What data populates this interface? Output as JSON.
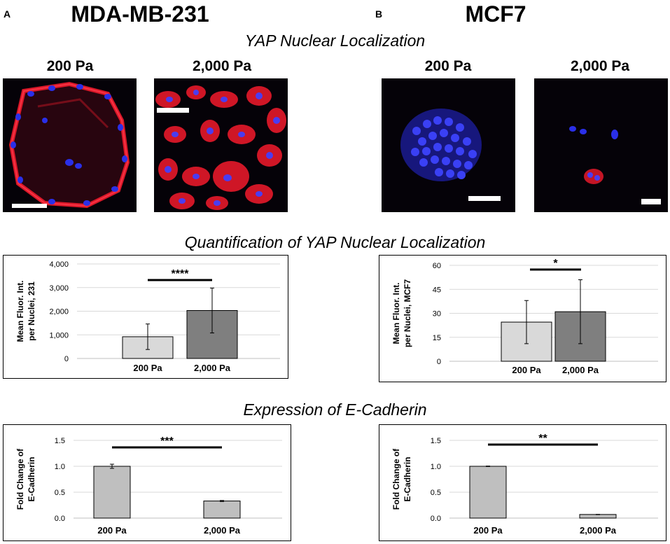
{
  "panels": {
    "a": {
      "letter": "A",
      "title": "MDA-MB-231"
    },
    "b": {
      "letter": "B",
      "title": "MCF7"
    }
  },
  "sections": {
    "yap": "YAP Nuclear Localization",
    "quant": "Quantification of YAP Nuclear Localization",
    "ecad": "Expression of E-Cadherin"
  },
  "image_labels": {
    "a_200": "200 Pa",
    "a_2000": "2,000 Pa",
    "b_200": "200 Pa",
    "b_2000": "2,000 Pa"
  },
  "colors": {
    "actin_red": "#e5192a",
    "nuclei_blue": "#2a2fe8",
    "bar_light": "#d9d9d9",
    "bar_dark": "#7f7f7f",
    "bar_grey": "#bfbfbf"
  },
  "chart_data": [
    {
      "type": "bar",
      "categories": [
        "200 Pa",
        "2,000 Pa"
      ],
      "values": [
        920,
        2030
      ],
      "errors": [
        540,
        950
      ],
      "ylabel": "Mean Fluor. Int. per Nuclei, 231",
      "ylabel_lines": [
        "Mean Fluor. Int.",
        "per Nuclei, 231"
      ],
      "ylim": [
        0,
        4000
      ],
      "yticks": [
        0,
        1000,
        2000,
        3000,
        4000
      ],
      "ytick_labels": [
        "0",
        "1,000",
        "2,000",
        "3,000",
        "4,000"
      ],
      "significance": "****",
      "grid": true
    },
    {
      "type": "bar",
      "categories": [
        "200 Pa",
        "2,000 Pa"
      ],
      "values": [
        24.5,
        31
      ],
      "errors": [
        13.5,
        20
      ],
      "ylabel": "Mean Fluor. Int. per Nuclei, MCF7",
      "ylabel_lines": [
        "Mean Fluor. Int.",
        "per Nuclei, MCF7"
      ],
      "ylim": [
        0,
        60
      ],
      "yticks": [
        0,
        15,
        30,
        45,
        60
      ],
      "ytick_labels": [
        "0",
        "15",
        "30",
        "45",
        "60"
      ],
      "significance": "*",
      "grid": true
    },
    {
      "type": "bar",
      "categories": [
        "200 Pa",
        "2,000 Pa"
      ],
      "values": [
        1.0,
        0.33
      ],
      "errors": [
        0.04,
        0.01
      ],
      "ylabel": "Fold Change of E-Cadherin",
      "ylabel_lines": [
        "Fold Change of",
        "E-Cadherin"
      ],
      "ylim": [
        0,
        1.5
      ],
      "yticks": [
        0,
        0.5,
        1.0,
        1.5
      ],
      "ytick_labels": [
        "0.0",
        "0.5",
        "1.0",
        "1.5"
      ],
      "significance": "***",
      "grid": true
    },
    {
      "type": "bar",
      "categories": [
        "200 Pa",
        "2,000 Pa"
      ],
      "values": [
        1.0,
        0.07
      ],
      "errors": [
        0.005,
        0.003
      ],
      "ylabel": "Fold Change of E-Cadherin",
      "ylabel_lines": [
        "Fold Change of",
        "E-Cadherin"
      ],
      "ylim": [
        0,
        1.5
      ],
      "yticks": [
        0,
        0.5,
        1.0,
        1.5
      ],
      "ytick_labels": [
        "0.0",
        "0.5",
        "1.0",
        "1.5"
      ],
      "significance": "**",
      "grid": true
    }
  ]
}
